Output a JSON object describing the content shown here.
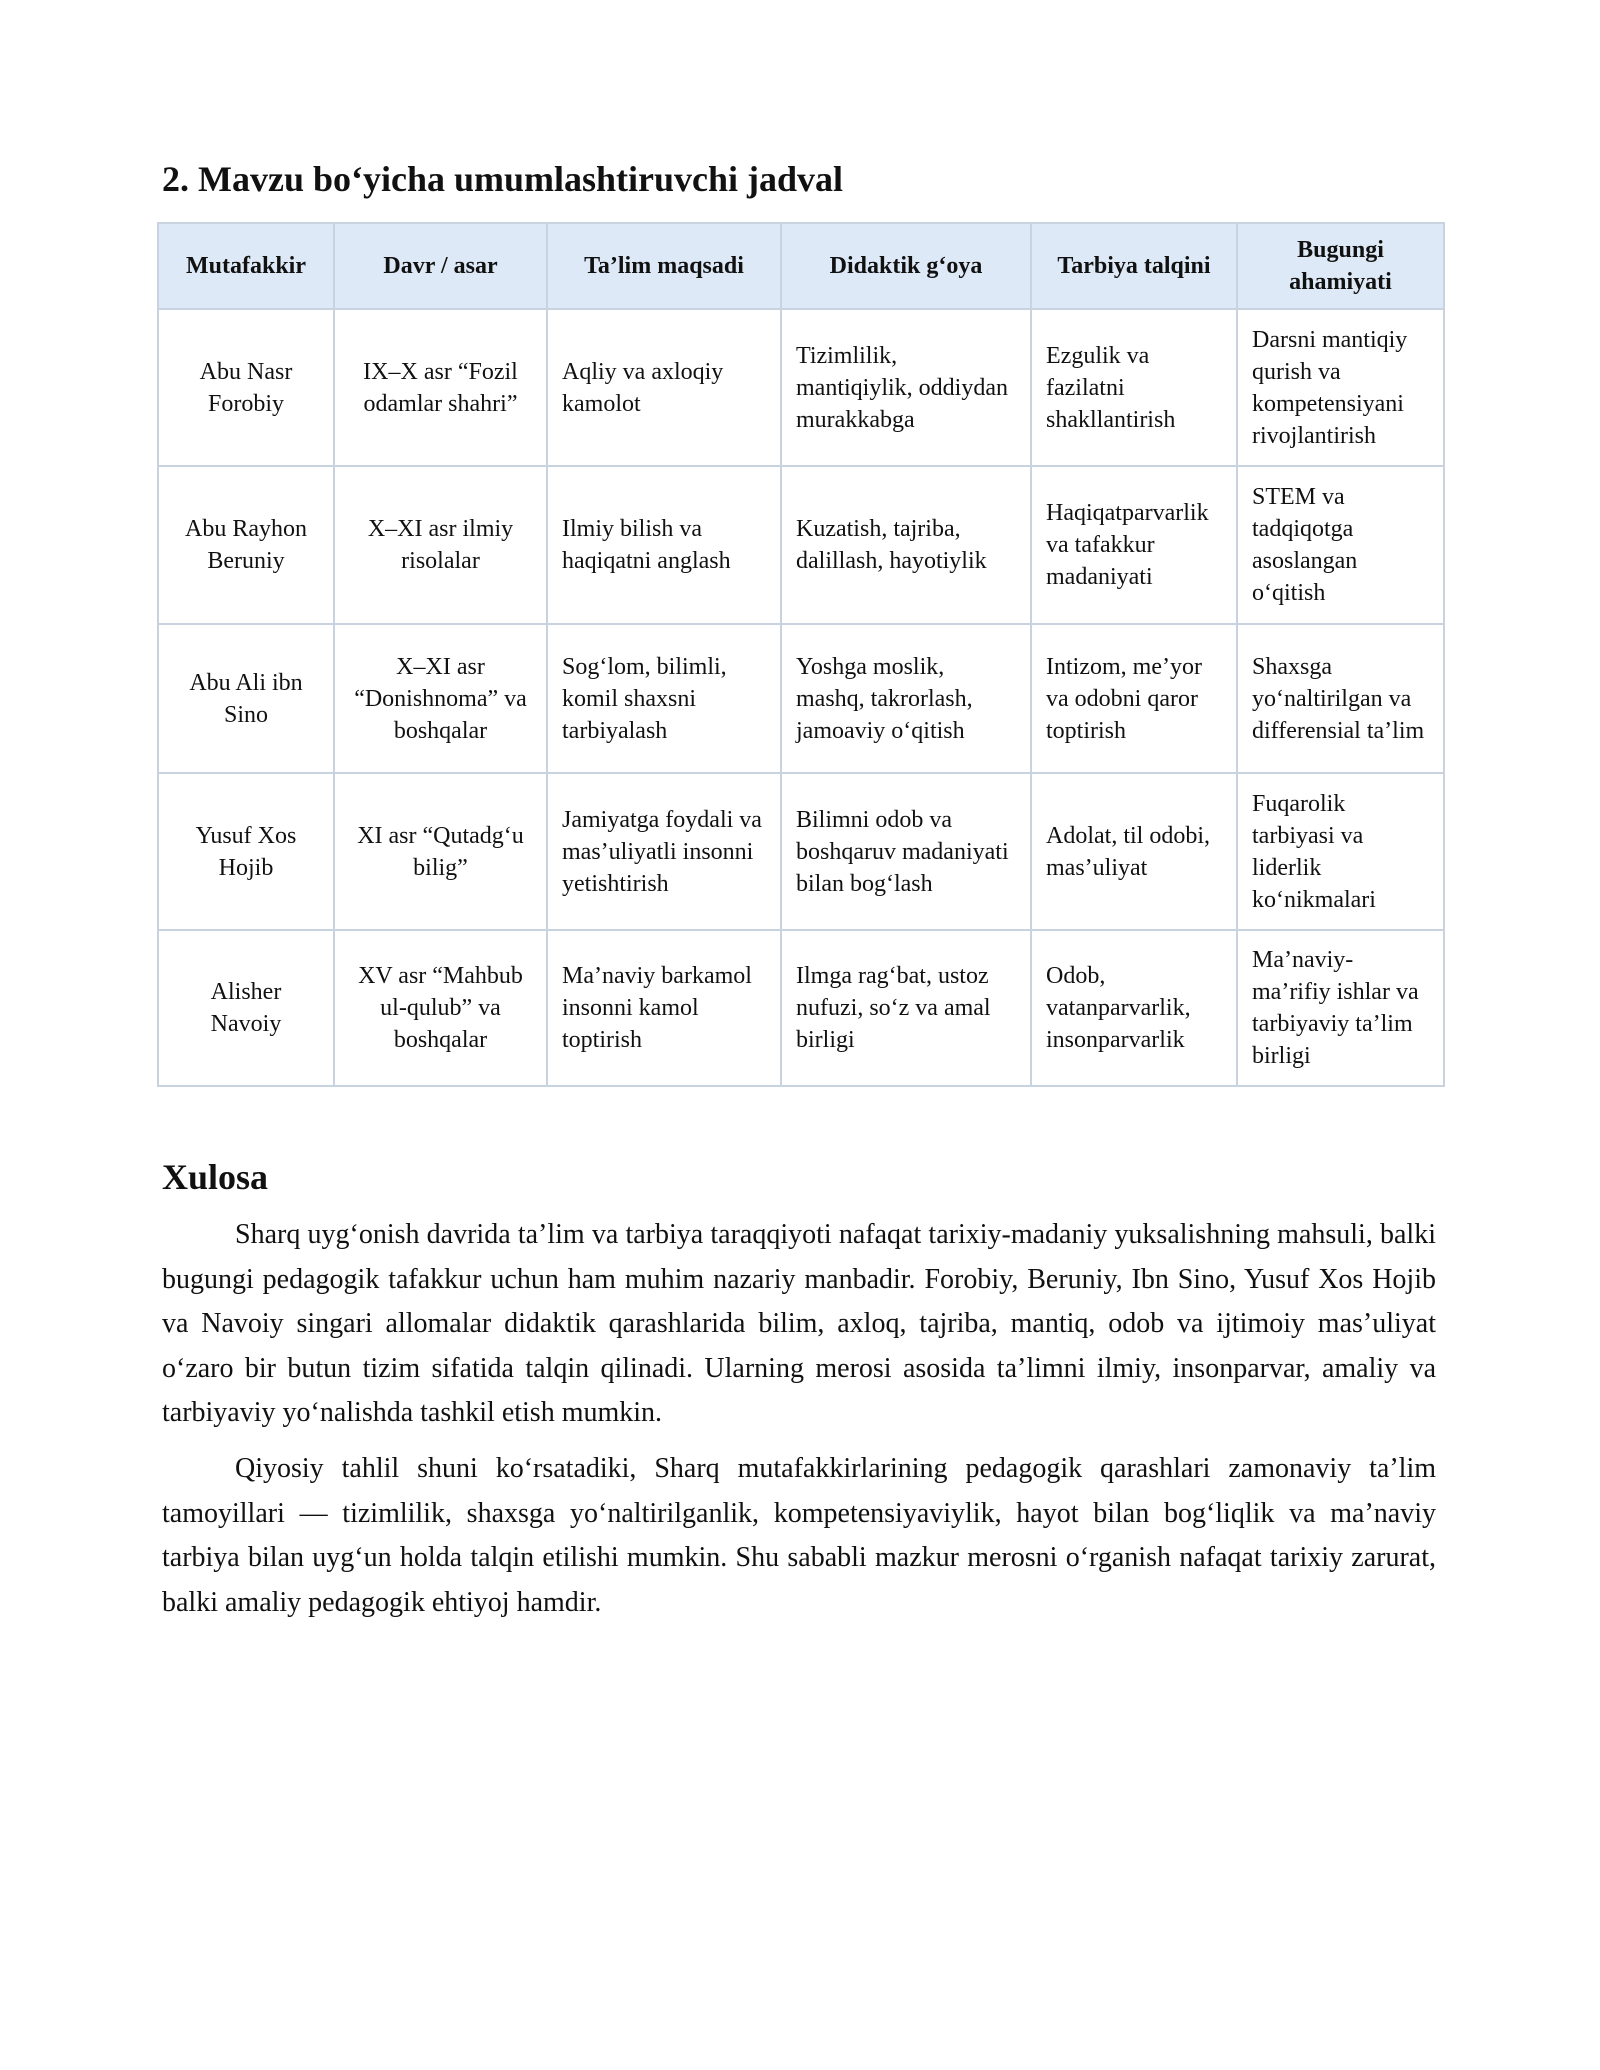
{
  "section_title": "2. Mavzu bo‘yicha umumlashtiruvchi jadval",
  "table": {
    "headers": [
      "Mutafakkir",
      "Davr / asar",
      "Ta’lim maqsadi",
      "Didaktik g‘oya",
      "Tarbiya talqini",
      "Bugungi ahamiyati"
    ],
    "rows": [
      [
        "Abu Nasr Forobiy",
        "IX–X asr “Fozil odamlar shahri”",
        "Aqliy va axloqiy kamolot",
        "Tizimlilik, mantiqiylik, oddiydan murakkabga",
        "Ezgulik va fazilatni shakllantirish",
        "Darsni mantiqiy qurish va kompetensiyani rivojlantirish"
      ],
      [
        "Abu Rayhon Beruniy",
        "X–XI asr ilmiy risolalar",
        "Ilmiy bilish va haqiqatni anglash",
        "Kuzatish, tajriba, dalillash, hayotiylik",
        "Haqiqatparvarlik va tafakkur madaniyati",
        "STEM va tadqiqotga asoslangan o‘qitish"
      ],
      [
        "Abu Ali ibn Sino",
        "X–XI asr “Donishnoma” va boshqalar",
        "Sog‘lom, bilimli, komil shaxsni tarbiyalash",
        "Yoshga moslik, mashq, takrorlash, jamoaviy o‘qitish",
        "Intizom, me’yor va odobni qaror toptirish",
        "Shaxsga yo‘naltirilgan va differensial ta’lim"
      ],
      [
        "Yusuf Xos Hojib",
        "XI asr “Qutadg‘u bilig”",
        "Jamiyatga foydali va mas’uliyatli insonni yetishtirish",
        "Bilimni odob va boshqaruv madaniyati bilan bog‘lash",
        "Adolat, til odobi, mas’uliyat",
        "Fuqarolik tarbiyasi va liderlik ko‘nikmalari"
      ],
      [
        "Alisher Navoiy",
        "XV asr “Mahbub ul-qulub” va boshqalar",
        "Ma’naviy barkamol insonni kamol toptirish",
        "Ilmga rag‘bat, ustoz nufuzi, so‘z va amal birligi",
        "Odob, vatanparvarlik, insonparvarlik",
        "Ma’naviy-ma’rifiy ishlar va tarbiyaviy ta’lim birligi"
      ]
    ]
  },
  "conclusion": {
    "title": "Xulosa",
    "paragraphs": [
      "Sharq uyg‘onish davrida ta’lim va tarbiya taraqqiyoti nafaqat tarixiy-madaniy yuksalishning mahsuli, balki bugungi pedagogik tafakkur uchun ham muhim nazariy manbadir. Forobiy, Beruniy, Ibn Sino, Yusuf Xos Hojib va Navoiy singari allomalar didaktik qarashlarida bilim, axloq, tajriba, mantiq, odob va ijtimoiy mas’uliyat o‘zaro bir butun tizim sifatida talqin qilinadi. Ularning merosi asosida ta’limni ilmiy, insonparvar, amaliy va tarbiyaviy yo‘nalishda tashkil etish mumkin.",
      "Qiyosiy tahlil shuni ko‘rsatadiki, Sharq mutafakkirlarining pedagogik qarashlari zamonaviy ta’lim tamoyillari — tizimlilik, shaxsga yo‘naltirilganlik, kompetensiyaviylik, hayot bilan bog‘liqlik va ma’naviy tarbiya bilan uyg‘un holda talqin etilishi mumkin. Shu sababli mazkur merosni o‘rganish nafaqat tarixiy zarurat, balki amaliy pedagogik ehtiyoj hamdir."
    ]
  },
  "colors": {
    "header_bg": "#dde9f6",
    "border": "#c9d3df"
  }
}
